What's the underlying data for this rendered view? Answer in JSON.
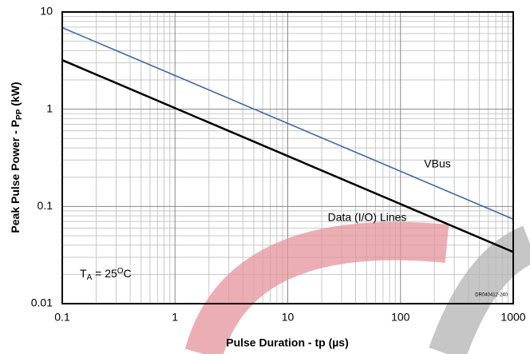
{
  "chart_data": {
    "type": "line",
    "log_x": true,
    "log_y": true,
    "grid": true,
    "minor_grid": true,
    "xlabel": {
      "text": "Pulse Duration - tp (µs)"
    },
    "ylabel": {
      "text": "Peak Pulse Power - P",
      "sub": "PP",
      "after": " (kW)"
    },
    "x": [
      0.1,
      1000
    ],
    "series": [
      {
        "name": "VBus",
        "color": "#3b6ba5",
        "values": [
          6.9,
          0.074
        ]
      },
      {
        "name": "Data (I/O) Lines",
        "color": "#000000",
        "values": [
          3.2,
          0.034
        ]
      }
    ],
    "xlim": [
      0.1,
      1000
    ],
    "xticks": [
      0.1,
      1,
      10,
      100,
      1000
    ],
    "ylim": [
      0.01,
      10
    ],
    "yticks": [
      0.01,
      0.1,
      1,
      10
    ],
    "condition": {
      "text": "T",
      "sub": "A",
      "mid": " = 25",
      "sup": "O",
      "after": "C"
    },
    "code": "DR040412-240"
  }
}
